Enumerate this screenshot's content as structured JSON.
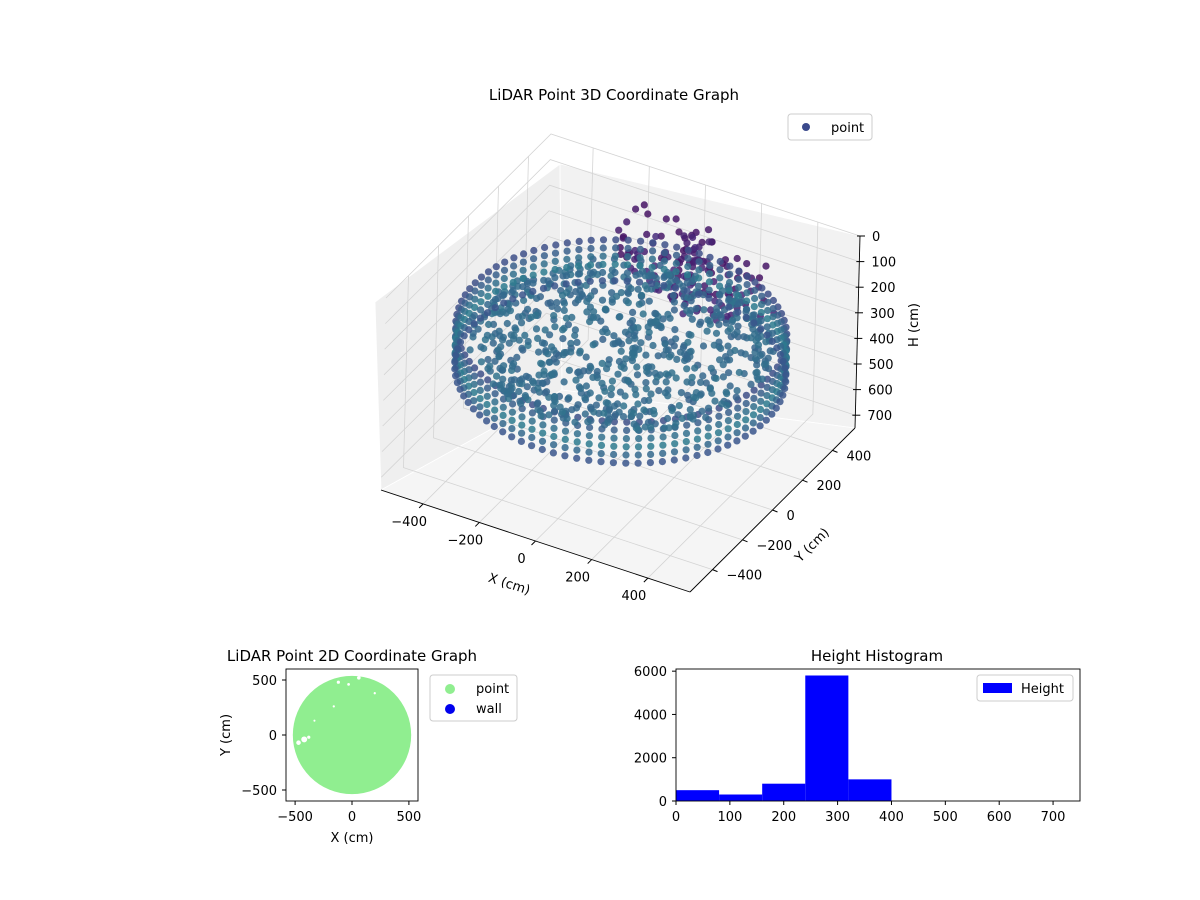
{
  "chart_data": [
    {
      "type": "scatter",
      "projection": "3d",
      "title": "LiDAR Point 3D Coordinate Graph",
      "xlabel": "X (cm)",
      "ylabel": "Y (cm)",
      "zlabel": "H (cm)",
      "xlim": [
        -550,
        550
      ],
      "ylim": [
        -550,
        550
      ],
      "zlim": [
        0,
        750
      ],
      "z_inverted": true,
      "x_ticks": [
        -400,
        -200,
        0,
        200,
        400
      ],
      "y_ticks": [
        -400,
        -200,
        0,
        200,
        400
      ],
      "z_ticks": [
        0,
        100,
        200,
        300,
        400,
        500,
        600,
        700
      ],
      "grid": true,
      "legend": {
        "position": "top-right",
        "entries": [
          "point"
        ]
      },
      "series": [
        {
          "name": "point",
          "legend_color": "#3b4a8c",
          "colormap": "viridis",
          "description_of_data": "ring wall of radius ~520 cm at heights 250-400 cm, interior floor ~300 cm, ceiling patches ~80-150 cm near centre-back"
        }
      ]
    },
    {
      "type": "scatter",
      "title": "LiDAR Point 2D Coordinate Graph",
      "xlabel": "X (cm)",
      "ylabel": "Y (cm)",
      "xlim": [
        -580,
        580
      ],
      "ylim": [
        -600,
        600
      ],
      "x_ticks": [
        -500,
        0,
        500
      ],
      "y_ticks": [
        -500,
        0,
        500
      ],
      "legend": {
        "position": "outside-right",
        "entries": [
          "point",
          "wall"
        ]
      },
      "series": [
        {
          "name": "point",
          "color": "#90ee90"
        },
        {
          "name": "wall",
          "color": "#0000ee"
        }
      ]
    },
    {
      "type": "bar",
      "subtype": "histogram",
      "title": "Height Histogram",
      "xlim": [
        0,
        750
      ],
      "ylim": [
        0,
        6100
      ],
      "x_ticks": [
        0,
        100,
        200,
        300,
        400,
        500,
        600,
        700
      ],
      "y_ticks": [
        0,
        2000,
        4000,
        6000
      ],
      "bin_edges": [
        0,
        80,
        160,
        240,
        320,
        400
      ],
      "values": [
        500,
        300,
        800,
        5800,
        1000
      ],
      "legend": {
        "position": "top-right",
        "entries": [
          "Height"
        ]
      },
      "series": [
        {
          "name": "Height",
          "color": "#0000ff"
        }
      ]
    }
  ]
}
